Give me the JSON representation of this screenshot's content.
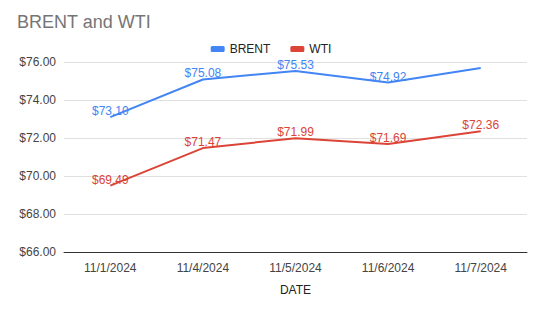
{
  "chart_data": {
    "type": "line",
    "title": "BRENT and WTI",
    "x_label": "DATE",
    "categories": [
      "11/1/2024",
      "11/4/2024",
      "11/5/2024",
      "11/6/2024",
      "11/7/2024"
    ],
    "series": [
      {
        "name": "BRENT",
        "color": "#4285f4",
        "values": [
          73.1,
          75.08,
          75.53,
          74.92,
          75.69
        ],
        "value_labels": [
          "$73.10",
          "$75.08",
          "$75.53",
          "$74.92",
          null
        ]
      },
      {
        "name": "WTI",
        "color": "#db4437",
        "values": [
          69.49,
          71.47,
          71.99,
          71.69,
          72.36
        ],
        "value_labels": [
          "$69.49",
          "$71.47",
          "$71.99",
          "$71.69",
          "$72.36"
        ]
      }
    ],
    "ylim": [
      66,
      76
    ],
    "yticks": [
      {
        "value": 66,
        "label": "$66.00"
      },
      {
        "value": 68,
        "label": "$68.00"
      },
      {
        "value": 70,
        "label": "$70.00"
      },
      {
        "value": 72,
        "label": "$72.00"
      },
      {
        "value": 74,
        "label": "$74.00"
      },
      {
        "value": 76,
        "label": "$76.00"
      }
    ],
    "grid": true,
    "legend": "top",
    "data_labels": true
  }
}
